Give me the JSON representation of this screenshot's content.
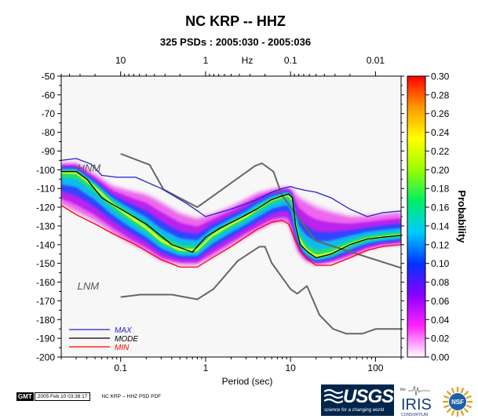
{
  "chart_data": {
    "type": "heatmap",
    "title": "NC KRP -- HHZ",
    "subtitle": "325 PSDs : 2005:030 - 2005:036",
    "xlabel": "Period (sec)",
    "x_scale": "log",
    "xlim": [
      0.02,
      200
    ],
    "x_ticks": [
      0.1,
      1,
      10,
      100
    ],
    "x_ticks_label": [
      "0.1",
      "1",
      "10",
      "100"
    ],
    "top_axis_unit": "Hz",
    "top_ticks": [
      10,
      1,
      0.1,
      0.01
    ],
    "top_ticks_label": [
      "10",
      "1",
      "0.1",
      "0.01"
    ],
    "ylim": [
      -200,
      -50
    ],
    "y_ticks": [
      -50,
      -60,
      -70,
      -80,
      -90,
      -100,
      -110,
      -120,
      -130,
      -140,
      -150,
      -160,
      -170,
      -180,
      -190,
      -200
    ],
    "y_ticks_label": [
      "-50",
      "-60",
      "-70",
      "-80",
      "-90",
      "-100",
      "-110",
      "-120",
      "-130",
      "-140",
      "-150",
      "-160",
      "-170",
      "-180",
      "-190",
      "-200"
    ],
    "colorbar": {
      "label": "Probability",
      "range": [
        0,
        0.3
      ],
      "ticks": [
        0.0,
        0.02,
        0.04,
        0.06,
        0.08,
        0.1,
        0.12,
        0.14,
        0.16,
        0.18,
        0.2,
        0.22,
        0.24,
        0.26,
        0.28,
        0.3
      ],
      "ticks_label": [
        "0.00",
        "0.02",
        "0.04",
        "0.06",
        "0.08",
        "0.10",
        "0.12",
        "0.14",
        "0.16",
        "0.18",
        "0.20",
        "0.22",
        "0.24",
        "0.26",
        "0.28",
        "0.30"
      ],
      "stops": [
        "#ffffff",
        "#ff22ff",
        "#8800ff",
        "#0033ff",
        "#00ccff",
        "#00ee66",
        "#99ff00",
        "#ffff00",
        "#ff9900",
        "#ff0000"
      ]
    },
    "legend": {
      "placement": "bottom-left",
      "entries": [
        {
          "label": "MAX",
          "color": "#2222cc"
        },
        {
          "label": "MODE",
          "color": "#000000"
        },
        {
          "label": "MIN",
          "color": "#ff0000"
        }
      ]
    },
    "series": [
      {
        "name": "HNM",
        "color": "#666666",
        "x": [
          0.1,
          0.22,
          0.32,
          0.8,
          3.8,
          4.6,
          6.3,
          7.9,
          15.4,
          20,
          354
        ],
        "y": [
          -91.5,
          -97.4,
          -110.5,
          -120,
          -98,
          -96.5,
          -101,
          -113.5,
          -131.5,
          -138,
          -156
        ]
      },
      {
        "name": "LNM",
        "color": "#666666",
        "x": [
          0.1,
          0.17,
          0.4,
          0.8,
          1.24,
          2.4,
          4.3,
          5,
          6,
          10,
          12,
          15.6,
          21.9,
          31.6,
          45,
          70,
          101,
          154,
          328
        ],
        "y": [
          -168,
          -166.7,
          -166.7,
          -169.2,
          -163.7,
          -148.6,
          -141.1,
          -141.1,
          -149.7,
          -163.8,
          -166.2,
          -162.1,
          -177.5,
          -185,
          -187.5,
          -187.5,
          -185,
          -185,
          -185
        ]
      },
      {
        "name": "MAX",
        "color": "#2222cc",
        "x": [
          0.02,
          0.03,
          0.045,
          0.06,
          0.09,
          0.15,
          0.3,
          0.6,
          1,
          2,
          4,
          6,
          8,
          10,
          12,
          15,
          20,
          30,
          50,
          80,
          120,
          200
        ],
        "y": [
          -95,
          -94,
          -97,
          -103,
          -104,
          -104,
          -110,
          -118,
          -125,
          -121,
          -116,
          -112,
          -110,
          -109,
          -110,
          -111,
          -112,
          -115,
          -121,
          -125,
          -123,
          -122
        ]
      },
      {
        "name": "MODE",
        "color": "#000000",
        "x": [
          0.02,
          0.03,
          0.04,
          0.06,
          0.1,
          0.2,
          0.4,
          0.7,
          1,
          1.5,
          2.5,
          4,
          6,
          8,
          9.5,
          10.5,
          11.5,
          13,
          16,
          20,
          30,
          50,
          80,
          120,
          200
        ],
        "y": [
          -101,
          -101,
          -105,
          -115,
          -121,
          -129,
          -140,
          -144,
          -136,
          -131,
          -126,
          -121,
          -116,
          -114,
          -113,
          -115,
          -130,
          -140,
          -144,
          -147,
          -145,
          -140,
          -137,
          -136,
          -135
        ]
      },
      {
        "name": "MIN",
        "color": "#ff0000",
        "x": [
          0.02,
          0.03,
          0.05,
          0.08,
          0.15,
          0.3,
          0.5,
          0.8,
          1.2,
          2,
          4,
          6,
          8,
          9.5,
          11,
          13,
          16,
          20,
          30,
          50,
          80,
          120,
          200
        ],
        "y": [
          -119,
          -124,
          -129,
          -134,
          -140,
          -148,
          -152,
          -152,
          -147,
          -141,
          -132,
          -128,
          -127,
          -129,
          -136,
          -143,
          -148,
          -151,
          -151,
          -147,
          -143,
          -141,
          -140
        ]
      }
    ],
    "density": {
      "x": [
        0.02,
        0.03,
        0.05,
        0.08,
        0.12,
        0.2,
        0.3,
        0.5,
        0.8,
        1.2,
        2,
        3,
        4,
        6,
        8,
        9.5,
        10.5,
        12,
        15,
        20,
        30,
        50,
        80,
        120,
        200
      ],
      "mode": [
        -101,
        -101,
        -109,
        -118,
        -124,
        -131,
        -138,
        -143,
        -143,
        -135,
        -129,
        -125,
        -121,
        -116,
        -114,
        -113,
        -116,
        -135,
        -143,
        -147,
        -145,
        -140,
        -137,
        -136,
        -135
      ],
      "upper": [
        -96,
        -96,
        -102,
        -108,
        -110,
        -112,
        -116,
        -122,
        -125,
        -123,
        -119,
        -115,
        -112,
        -110,
        -109,
        -109,
        -110,
        -113,
        -115,
        -118,
        -121,
        -124,
        -124,
        -123,
        -122
      ],
      "lower": [
        -119,
        -123,
        -128,
        -134,
        -139,
        -144,
        -149,
        -151,
        -151,
        -147,
        -141,
        -136,
        -133,
        -129,
        -128,
        -129,
        -136,
        -144,
        -149,
        -151,
        -150,
        -147,
        -143,
        -141,
        -140
      ]
    }
  },
  "footer": {
    "gmt_logo": "GMT",
    "gmt_stamp": "2005 Feb 10 03:38:17",
    "gmt_note": "NC KRP -- HHZ PSD PDF",
    "usgs_name": "USGS",
    "usgs_tagline": "science for a changing world",
    "iris_the": "the",
    "iris_name": "IRIS",
    "iris_sub": "CONSORTIUM",
    "nsf_name": "NSF"
  }
}
